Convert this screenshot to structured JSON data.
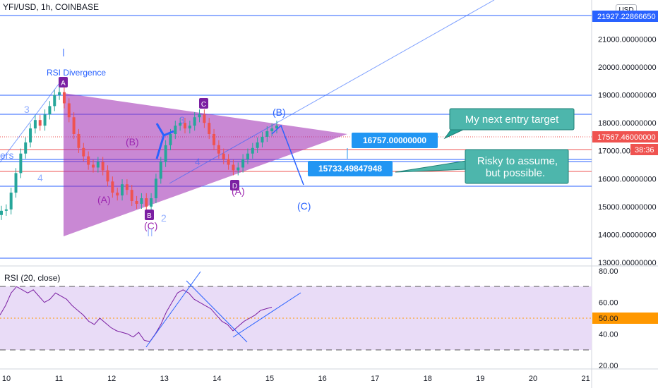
{
  "header": {
    "title": "YFI/USD, 1h, COINBASE",
    "currency": "USD"
  },
  "rsi_header": "RSI (20, close)",
  "colors": {
    "up": "#26a69a",
    "down": "#ef5350",
    "triangle": "#9c27b0",
    "wave": "#2962ff",
    "callout": "#26a69a"
  },
  "price_axis": {
    "ticks": [
      "21000.00000000",
      "20000.00000000",
      "19000.00000000",
      "18000.00000000",
      "17000.00000000",
      "16000.00000000",
      "15000.00000000",
      "14000.00000000",
      "13000.00000000"
    ],
    "top_label": "21927.22866650",
    "current_price": "17567.46000000",
    "countdown": "38:36",
    "bottom_label": "13000.00000000"
  },
  "rsi_axis": {
    "ticks": [
      "80.00",
      "60.00",
      "40.00",
      "20.00"
    ],
    "current": "50.00"
  },
  "time_axis": {
    "ticks": [
      "10",
      "11",
      "12",
      "13",
      "14",
      "15",
      "16",
      "17",
      "18",
      "19",
      "20",
      "21"
    ]
  },
  "annotations": {
    "rsi_divergence": "RSI Divergence",
    "wave_I": "I",
    "wave_II": "II",
    "wave_3": "3",
    "wave_3b": "3",
    "wave_4": "4",
    "wave_4b": "4",
    "wave_2": "2",
    "wave_A": "(A)",
    "wave_B": "(B)",
    "wave_A2": "(A)",
    "wave_B2": "(B)",
    "wave_C": "(C)",
    "wave_C2": "(C)",
    "ers": "ers",
    "point_A": "A",
    "point_B": "B",
    "point_C": "C",
    "point_D": "D",
    "target1": "16757.00000000",
    "target2": "15733.49847948",
    "callout1": "My next entry target",
    "callout2_line1": "Risky to assume,",
    "callout2_line2": "but possible."
  },
  "chart_data": {
    "type": "candlestick",
    "symbol": "YFI/USD",
    "timeframe": "1h",
    "exchange": "COINBASE",
    "ylim": [
      12900,
      22400
    ],
    "x_tick_labels": [
      "10",
      "11",
      "12",
      "13",
      "14",
      "15",
      "16",
      "17",
      "18",
      "19",
      "20",
      "21"
    ],
    "close_series": [
      14850,
      14900,
      15500,
      16200,
      16900,
      17300,
      17800,
      18100,
      17900,
      18300,
      18600,
      19000,
      19100,
      18700,
      18200,
      17600,
      17100,
      16800,
      16500,
      16400,
      16600,
      16300,
      15900,
      15500,
      15400,
      15800,
      15600,
      15200,
      15100,
      15300,
      15000,
      15300,
      16000,
      16600,
      17200,
      17600,
      17900,
      18000,
      17800,
      17900,
      18200,
      18300,
      18000,
      17600,
      17200,
      16900,
      16700,
      16500,
      16300,
      16400,
      16700,
      16900,
      17100,
      17300,
      17500,
      17700,
      17800,
      17900
    ],
    "current_price": 17567.46,
    "targets": [
      16757.0,
      15733.49847948
    ],
    "rsi": {
      "length": 20,
      "source": "close",
      "ylim": [
        20,
        80
      ],
      "bands": [
        30,
        70
      ],
      "current": 50.0,
      "values": [
        52,
        58,
        66,
        70,
        68,
        66,
        68,
        64,
        60,
        62,
        66,
        64,
        62,
        58,
        55,
        52,
        48,
        46,
        50,
        47,
        44,
        42,
        41,
        40,
        38,
        41,
        36,
        35,
        40,
        46,
        54,
        60,
        66,
        68,
        66,
        62,
        60,
        58,
        56,
        52,
        48,
        46,
        42,
        45,
        48,
        50,
        52,
        55,
        56,
        57
      ]
    }
  }
}
